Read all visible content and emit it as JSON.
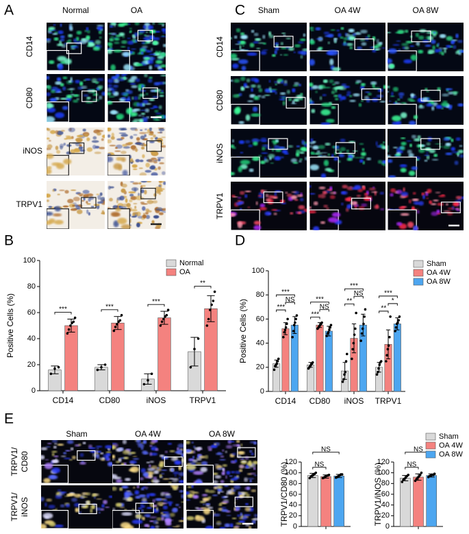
{
  "panel_A": {
    "label": "A",
    "columns": [
      "Normal",
      "OA"
    ],
    "rows": [
      "CD14",
      "CD80",
      "iNOS",
      "TRPV1"
    ]
  },
  "panel_B": {
    "label": "B"
  },
  "panel_C": {
    "label": "C",
    "columns": [
      "Sham",
      "OA 4W",
      "OA 8W"
    ],
    "rows": [
      "CD14",
      "CD80",
      "iNOS",
      "TRPV1"
    ]
  },
  "panel_D": {
    "label": "D"
  },
  "panel_E": {
    "label": "E",
    "columns": [
      "Sham",
      "OA 4W",
      "OA 8W"
    ],
    "rows": [
      [
        "TRPV1/",
        "CD80"
      ],
      [
        "TRPV1/",
        "iNOS"
      ]
    ]
  },
  "chart_data": [
    {
      "type": "bar",
      "ylabel": "Positive Cells (%)",
      "categories": [
        "CD14",
        "CD80",
        "iNOS",
        "TRPV1"
      ],
      "ylim": [
        0,
        100
      ],
      "yticks": [
        0,
        20,
        40,
        60,
        80,
        100
      ],
      "legend": "upper right",
      "series": [
        {
          "name": "Normal",
          "color": "#d9d9d9",
          "values": [
            16,
            18,
            9,
            30
          ],
          "errors": [
            3,
            2,
            4,
            11
          ],
          "points": [
            [
              13,
              17,
              18
            ],
            [
              16,
              18,
              20
            ],
            [
              5,
              8,
              13
            ],
            [
              18,
              32,
              40
            ]
          ]
        },
        {
          "name": "OA",
          "color": "#f4827f",
          "values": [
            50,
            52,
            56,
            63
          ],
          "errors": [
            5,
            5,
            5,
            10
          ],
          "points": [
            [
              44,
              47,
              50,
              52,
              53,
              56
            ],
            [
              46,
              49,
              51,
              53,
              54,
              58
            ],
            [
              50,
              53,
              55,
              57,
              58,
              62
            ],
            [
              50,
              55,
              62,
              66,
              69,
              76
            ]
          ]
        }
      ],
      "significance": [
        {
          "category": "CD14",
          "between": [
            "Normal",
            "OA"
          ],
          "label": "***"
        },
        {
          "category": "CD80",
          "between": [
            "Normal",
            "OA"
          ],
          "label": "***"
        },
        {
          "category": "iNOS",
          "between": [
            "Normal",
            "OA"
          ],
          "label": "***"
        },
        {
          "category": "TRPV1",
          "between": [
            "Normal",
            "OA"
          ],
          "label": "**"
        }
      ]
    },
    {
      "type": "bar",
      "ylabel": "Positive Cells (%)",
      "categories": [
        "CD14",
        "CD80",
        "iNOS",
        "TRPV1"
      ],
      "ylim": [
        0,
        100
      ],
      "yticks": [
        0,
        20,
        40,
        60,
        80,
        100
      ],
      "legend": "right",
      "series": [
        {
          "name": "Sham",
          "color": "#d9d9d9",
          "values": [
            23,
            22,
            17,
            20
          ],
          "errors": [
            3,
            2,
            7,
            4
          ],
          "points": [
            [
              18,
              21,
              22,
              23,
              25,
              27
            ],
            [
              19,
              20,
              21,
              22,
              23,
              24
            ],
            [
              8,
              10,
              14,
              16,
              25,
              31
            ],
            [
              14,
              16,
              19,
              22,
              24,
              25
            ]
          ]
        },
        {
          "name": "OA 4W",
          "color": "#f4827f",
          "values": [
            52,
            55,
            44,
            39
          ],
          "errors": [
            5,
            2,
            12,
            12
          ],
          "points": [
            [
              45,
              49,
              51,
              53,
              56,
              60
            ],
            [
              52,
              53,
              54,
              55,
              56,
              57
            ],
            [
              27,
              35,
              40,
              47,
              52,
              65
            ],
            [
              25,
              30,
              35,
              38,
              45,
              62
            ]
          ]
        },
        {
          "name": "OA 8W",
          "color": "#4da6f0",
          "values": [
            55,
            50,
            55,
            56
          ],
          "errors": [
            7,
            4,
            9,
            5
          ],
          "points": [
            [
              45,
              50,
              55,
              57,
              60,
              63
            ],
            [
              46,
              48,
              49,
              51,
              53,
              55
            ],
            [
              42,
              48,
              52,
              56,
              62,
              68
            ],
            [
              50,
              53,
              56,
              57,
              59,
              62
            ]
          ]
        }
      ],
      "significance": [
        {
          "category": "CD14",
          "between": [
            "Sham",
            "OA 4W"
          ],
          "label": "***"
        },
        {
          "category": "CD14",
          "between": [
            "OA 4W",
            "OA 8W"
          ],
          "label": "NS"
        },
        {
          "category": "CD14",
          "between": [
            "Sham",
            "OA 8W"
          ],
          "label": "***"
        },
        {
          "category": "CD80",
          "between": [
            "Sham",
            "OA 4W"
          ],
          "label": "***"
        },
        {
          "category": "CD80",
          "between": [
            "OA 4W",
            "OA 8W"
          ],
          "label": "NS"
        },
        {
          "category": "CD80",
          "between": [
            "Sham",
            "OA 8W"
          ],
          "label": "***"
        },
        {
          "category": "iNOS",
          "between": [
            "Sham",
            "OA 4W"
          ],
          "label": "**"
        },
        {
          "category": "iNOS",
          "between": [
            "OA 4W",
            "OA 8W"
          ],
          "label": "NS"
        },
        {
          "category": "iNOS",
          "between": [
            "Sham",
            "OA 8W"
          ],
          "label": "***"
        },
        {
          "category": "TRPV1",
          "between": [
            "Sham",
            "OA 4W"
          ],
          "label": "**"
        },
        {
          "category": "TRPV1",
          "between": [
            "OA 4W",
            "OA 8W"
          ],
          "label": "*"
        },
        {
          "category": "TRPV1",
          "between": [
            "Sham",
            "OA 8W"
          ],
          "label": "***"
        }
      ]
    },
    {
      "type": "bar",
      "ylabel": "TRPV1/CD80 (%)",
      "categories": [
        null
      ],
      "ylim": [
        0,
        120
      ],
      "yticks": [
        0,
        20,
        40,
        60,
        80,
        100,
        120
      ],
      "series": [
        {
          "color": "#d9d9d9",
          "values": [
            95
          ],
          "errors": [
            4
          ],
          "points": [
            [
              90,
              93,
              95,
              96,
              98,
              100
            ]
          ]
        },
        {
          "color": "#f4827f",
          "values": [
            93
          ],
          "errors": [
            3
          ],
          "points": [
            [
              90,
              91,
              93,
              94,
              95,
              96
            ]
          ]
        },
        {
          "color": "#4da6f0",
          "values": [
            94
          ],
          "errors": [
            3
          ],
          "points": [
            [
              91,
              92,
              94,
              95,
              97,
              97
            ]
          ]
        }
      ],
      "significance": [
        {
          "between": [
            0,
            1
          ],
          "label": "NS"
        },
        {
          "between": [
            0,
            2
          ],
          "label": "NS"
        }
      ]
    },
    {
      "type": "bar",
      "ylabel": "TRPV1/iNOS (%)",
      "categories": [
        null
      ],
      "ylim": [
        0,
        120
      ],
      "yticks": [
        0,
        20,
        40,
        60,
        80,
        100,
        120
      ],
      "legend": "right",
      "series": [
        {
          "name": "Sham",
          "color": "#d9d9d9",
          "values": [
            90
          ],
          "errors": [
            5
          ],
          "points": [
            [
              83,
              87,
              89,
              91,
              94,
              96
            ]
          ]
        },
        {
          "name": "OA 4W",
          "color": "#f4827f",
          "values": [
            92
          ],
          "errors": [
            6
          ],
          "points": [
            [
              85,
              88,
              91,
              93,
              96,
              100
            ]
          ]
        },
        {
          "name": "OA 8W",
          "color": "#4da6f0",
          "values": [
            95
          ],
          "errors": [
            3
          ],
          "points": [
            [
              92,
              94,
              95,
              96,
              96,
              98
            ]
          ]
        }
      ],
      "significance": [
        {
          "between": [
            "Sham",
            "OA 4W"
          ],
          "label": "NS"
        },
        {
          "between": [
            "Sham",
            "OA 8W"
          ],
          "label": "NS"
        }
      ]
    }
  ]
}
